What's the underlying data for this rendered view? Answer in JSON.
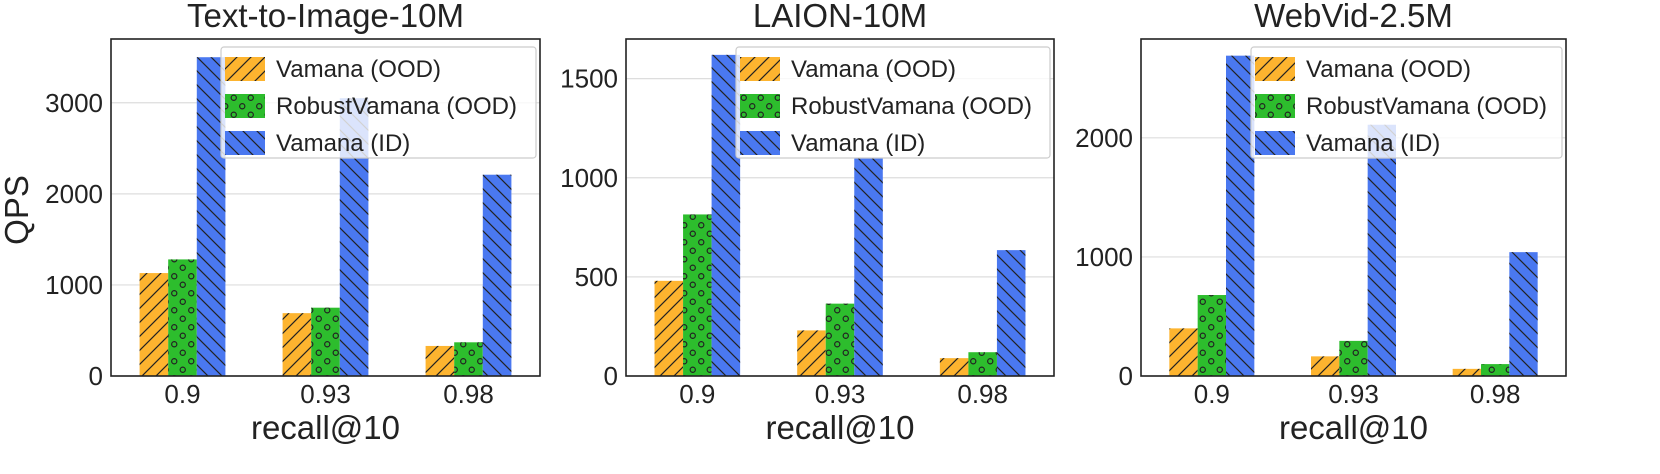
{
  "shared": {
    "ylabel": "QPS",
    "xlabel": "recall@10",
    "categories": [
      "0.9",
      "0.93",
      "0.98"
    ],
    "series": [
      {
        "name": "Vamana (OOD)",
        "color": "#FDB42F",
        "pattern": "diag-slash"
      },
      {
        "name": "RobustVamana (OOD)",
        "color": "#2DBD2D",
        "pattern": "circles"
      },
      {
        "name": "Vamana (ID)",
        "color": "#4A78F0",
        "pattern": "diag-backslash"
      }
    ]
  },
  "chart_data": [
    {
      "type": "bar",
      "title": "Text-to-Image-10M",
      "xlabel": "recall@10",
      "ylabel": "QPS",
      "categories": [
        "0.9",
        "0.93",
        "0.98"
      ],
      "ylim": [
        0,
        3700
      ],
      "yticks": [
        0,
        1000,
        2000,
        3000
      ],
      "grid": true,
      "legend": "top-right",
      "series": [
        {
          "name": "Vamana (OOD)",
          "values": [
            1130,
            690,
            330
          ]
        },
        {
          "name": "RobustVamana (OOD)",
          "values": [
            1280,
            750,
            370
          ]
        },
        {
          "name": "Vamana (ID)",
          "values": [
            3500,
            3050,
            2210
          ]
        }
      ]
    },
    {
      "type": "bar",
      "title": "LAION-10M",
      "xlabel": "recall@10",
      "ylabel": "",
      "categories": [
        "0.9",
        "0.93",
        "0.98"
      ],
      "ylim": [
        0,
        1700
      ],
      "yticks": [
        0,
        500,
        1000,
        1500
      ],
      "grid": true,
      "legend": "top-right",
      "series": [
        {
          "name": "Vamana (OOD)",
          "values": [
            480,
            230,
            90
          ]
        },
        {
          "name": "RobustVamana (OOD)",
          "values": [
            815,
            365,
            120
          ]
        },
        {
          "name": "Vamana (ID)",
          "values": [
            1620,
            1100,
            635
          ]
        }
      ]
    },
    {
      "type": "bar",
      "title": "WebVid-2.5M",
      "xlabel": "recall@10",
      "ylabel": "",
      "categories": [
        "0.9",
        "0.93",
        "0.98"
      ],
      "ylim": [
        0,
        2830
      ],
      "yticks": [
        0,
        1000,
        2000
      ],
      "grid": true,
      "legend": "top-right",
      "series": [
        {
          "name": "Vamana (OOD)",
          "values": [
            400,
            165,
            60
          ]
        },
        {
          "name": "RobustVamana (OOD)",
          "values": [
            680,
            295,
            100
          ]
        },
        {
          "name": "Vamana (ID)",
          "values": [
            2690,
            2110,
            1040
          ]
        }
      ]
    }
  ]
}
